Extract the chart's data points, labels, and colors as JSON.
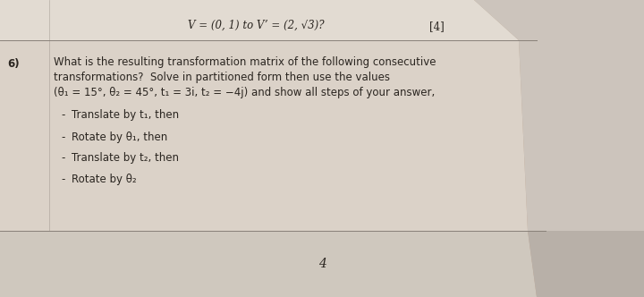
{
  "bg_color_top": "#b8a898",
  "bg_color_left": "#a89888",
  "paper_main": "#dbd2c8",
  "paper_top_strip": "#e2dbd2",
  "paper_bottom_strip": "#cfc8be",
  "paper_right_fold": "#b8b0a8",
  "text_dark": "#2a2520",
  "text_med": "#3a3530",
  "line_color": "#888078",
  "top_text": "V = (0, 1) to V’ = (2, √3)?",
  "mark_text": "[4]",
  "question_num": "6)",
  "q_line1": "What is the resulting transformation matrix of the following consecutive",
  "q_line2": "transformations?  Solve in partitioned form then use the values",
  "q_line3": "(θ₁ = 15°, θ₂ = 45°, t₁ = 3i, t₂ = −4j) and show all steps of your answer,",
  "bullets": [
    "Translate by t₁, then",
    "Rotate by θ₁, then",
    "Translate by t₂, then",
    "Rotate by θ₂"
  ],
  "footer_num": "4",
  "font_size_top": 8.5,
  "font_size_main": 8.5,
  "font_size_bullet": 8.5,
  "font_size_footer": 10
}
